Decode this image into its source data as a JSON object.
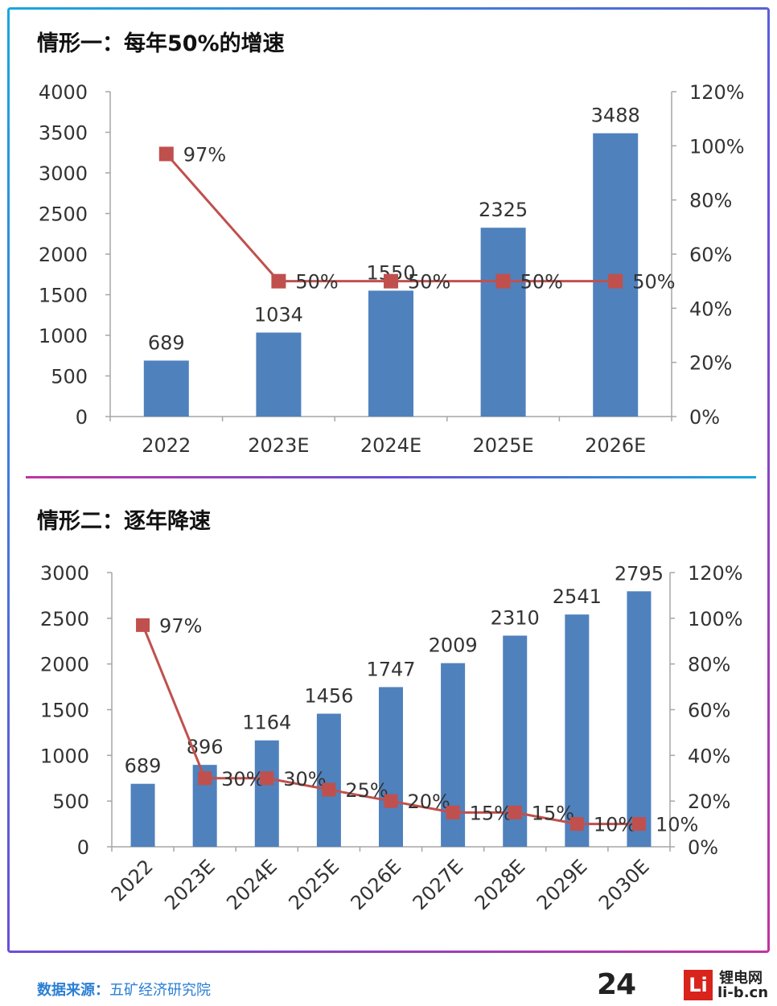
{
  "colors": {
    "bar": "#4f81bd",
    "line": "#c0504d",
    "axis": "#a6a6a6",
    "text": "#333333"
  },
  "chart_data": [
    {
      "type": "bar",
      "title": "情形一：每年50%的增速",
      "categories": [
        "2022",
        "2023E",
        "2024E",
        "2025E",
        "2026E"
      ],
      "series": [
        {
          "values": [
            689,
            1034,
            1550,
            2325,
            3488
          ],
          "axis": "left",
          "kind": "bar"
        },
        {
          "values": [
            97,
            50,
            50,
            50,
            50
          ],
          "labels": [
            "97%",
            "50%",
            "50%",
            "50%",
            "50%"
          ],
          "axis": "right",
          "kind": "line"
        }
      ],
      "ylim": [
        0,
        4000
      ],
      "yticks": [
        "0",
        "500",
        "1000",
        "1500",
        "2000",
        "2500",
        "3000",
        "3500",
        "4000"
      ],
      "y2lim": [
        0,
        120
      ],
      "y2ticks": [
        "0%",
        "20%",
        "40%",
        "60%",
        "80%",
        "100%",
        "120%"
      ],
      "xlabel": "",
      "ylabel": "",
      "grid": false,
      "legend": "none"
    },
    {
      "type": "bar",
      "title": "情形二：逐年降速",
      "categories": [
        "2022",
        "2023E",
        "2024E",
        "2025E",
        "2026E",
        "2027E",
        "2028E",
        "2029E",
        "2030E"
      ],
      "series": [
        {
          "values": [
            689,
            896,
            1164,
            1456,
            1747,
            2009,
            2310,
            2541,
            2795
          ],
          "axis": "left",
          "kind": "bar"
        },
        {
          "values": [
            97,
            30,
            30,
            25,
            20,
            15,
            15,
            10,
            10
          ],
          "labels": [
            "97%",
            "30%",
            "30%",
            "25%",
            "20%",
            "15%",
            "15%",
            "10%",
            "10%"
          ],
          "axis": "right",
          "kind": "line"
        }
      ],
      "ylim": [
        0,
        3000
      ],
      "yticks": [
        "0",
        "500",
        "1000",
        "1500",
        "2000",
        "2500",
        "3000"
      ],
      "y2lim": [
        0,
        120
      ],
      "y2ticks": [
        "0%",
        "20%",
        "40%",
        "60%",
        "80%",
        "100%",
        "120%"
      ],
      "xlabel": "",
      "ylabel": "",
      "grid": false,
      "legend": "none"
    }
  ],
  "footer": {
    "source_label": "数据来源：",
    "source_value": "五矿经济研究院",
    "logo_number": "24",
    "logo_mark": "Li",
    "logo_cn": "锂电网",
    "logo_url": "li-b.cn"
  }
}
